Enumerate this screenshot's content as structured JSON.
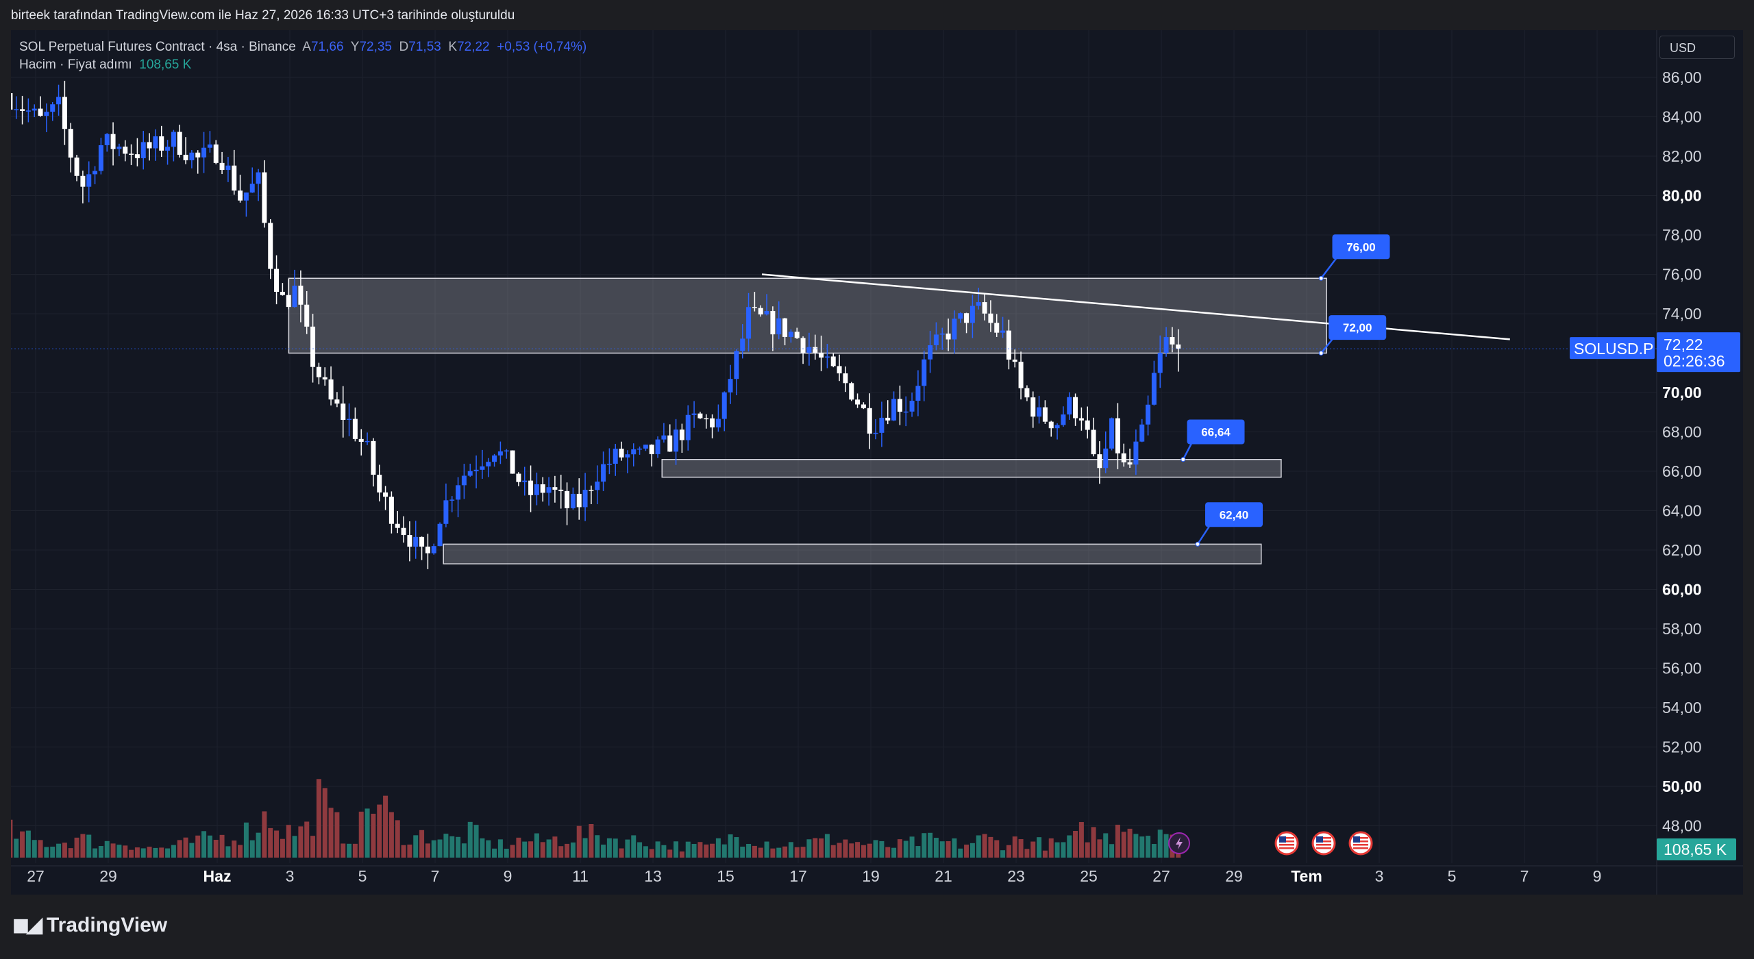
{
  "attribution": "birteek tarafından TradingView.com ile Haz 27, 2026 16:33 UTC+3 tarihinde oluşturuldu",
  "legend": {
    "symbol": "SOL Perpetual Futures Contract · 4sa · Binance",
    "open_key": "A",
    "open": "71,66",
    "high_key": "Y",
    "high": "72,35",
    "low_key": "D",
    "low": "71,53",
    "close_key": "K",
    "close": "72,22",
    "change": "+0,53 (+0,74%)",
    "volume_label": "Hacim · Fiyat adımı",
    "volume_value": "108,65 K"
  },
  "currency_button": "USD",
  "logo": "TradingView",
  "colors": {
    "background": "#131722",
    "up": "#2962ff",
    "down": "#ffffff",
    "vol_up": "#22786f",
    "vol_down": "#8f3a3f",
    "accent": "#2962ff",
    "volume_badge": "#26a69a"
  },
  "price_badge": {
    "symbol": "SOLUSD.P",
    "price": "72,22",
    "countdown": "02:26:36"
  },
  "volume_badge": "108,65 K",
  "event_icons": [
    "lightning-icon",
    "us-flag-icon",
    "us-flag-icon",
    "us-flag-icon"
  ],
  "chart_data": {
    "type": "candlestick",
    "ylim": [
      47,
      87
    ],
    "y_ticks": [
      {
        "v": 86,
        "label": "86,00",
        "bold": false
      },
      {
        "v": 84,
        "label": "84,00",
        "bold": false
      },
      {
        "v": 82,
        "label": "82,00",
        "bold": false
      },
      {
        "v": 80,
        "label": "80,00",
        "bold": true
      },
      {
        "v": 78,
        "label": "78,00",
        "bold": false
      },
      {
        "v": 76,
        "label": "76,00",
        "bold": false
      },
      {
        "v": 74,
        "label": "74,00",
        "bold": false
      },
      {
        "v": 70,
        "label": "70,00",
        "bold": true
      },
      {
        "v": 68,
        "label": "68,00",
        "bold": false
      },
      {
        "v": 66,
        "label": "66,00",
        "bold": false
      },
      {
        "v": 64,
        "label": "64,00",
        "bold": false
      },
      {
        "v": 62,
        "label": "62,00",
        "bold": false
      },
      {
        "v": 60,
        "label": "60,00",
        "bold": true
      },
      {
        "v": 58,
        "label": "58,00",
        "bold": false
      },
      {
        "v": 56,
        "label": "56,00",
        "bold": false
      },
      {
        "v": 54,
        "label": "54,00",
        "bold": false
      },
      {
        "v": 52,
        "label": "52,00",
        "bold": false
      },
      {
        "v": 50,
        "label": "50,00",
        "bold": true
      },
      {
        "v": 48,
        "label": "48,00",
        "bold": false
      }
    ],
    "x_ticks": [
      {
        "d": 0,
        "label": "27",
        "bold": false
      },
      {
        "d": 2,
        "label": "29",
        "bold": false
      },
      {
        "d": 5,
        "label": "Haz",
        "bold": true
      },
      {
        "d": 7,
        "label": "3",
        "bold": false
      },
      {
        "d": 9,
        "label": "5",
        "bold": false
      },
      {
        "d": 11,
        "label": "7",
        "bold": false
      },
      {
        "d": 13,
        "label": "9",
        "bold": false
      },
      {
        "d": 15,
        "label": "11",
        "bold": false
      },
      {
        "d": 17,
        "label": "13",
        "bold": false
      },
      {
        "d": 19,
        "label": "15",
        "bold": false
      },
      {
        "d": 21,
        "label": "17",
        "bold": false
      },
      {
        "d": 23,
        "label": "19",
        "bold": false
      },
      {
        "d": 25,
        "label": "21",
        "bold": false
      },
      {
        "d": 27,
        "label": "23",
        "bold": false
      },
      {
        "d": 29,
        "label": "25",
        "bold": false
      },
      {
        "d": 31,
        "label": "27",
        "bold": false
      },
      {
        "d": 33,
        "label": "29",
        "bold": false
      },
      {
        "d": 35,
        "label": "Tem",
        "bold": true
      },
      {
        "d": 37,
        "label": "3",
        "bold": false
      },
      {
        "d": 39,
        "label": "5",
        "bold": false
      },
      {
        "d": 41,
        "label": "7",
        "bold": false
      },
      {
        "d": 43,
        "label": "9",
        "bold": false
      }
    ],
    "price_path": [
      [
        -0.7,
        85.2
      ],
      [
        0.3,
        83.8
      ],
      [
        0.8,
        84.5
      ],
      [
        1.2,
        81.6
      ],
      [
        1.5,
        80.4
      ],
      [
        2,
        82.7
      ],
      [
        3,
        82.2
      ],
      [
        4,
        82.8
      ],
      [
        4.6,
        81.8
      ],
      [
        5.2,
        82.3
      ],
      [
        5.8,
        79.9
      ],
      [
        6.3,
        80.7
      ],
      [
        6.6,
        76.8
      ],
      [
        7.0,
        74.5
      ],
      [
        7.3,
        75.2
      ],
      [
        7.8,
        71.6
      ],
      [
        8.3,
        69.5
      ],
      [
        8.8,
        68.5
      ],
      [
        9.3,
        67
      ],
      [
        9.6,
        65
      ],
      [
        10,
        63.8
      ],
      [
        10.5,
        62.6
      ],
      [
        10.9,
        61.3
      ],
      [
        11.3,
        63.8
      ],
      [
        11.8,
        65.6
      ],
      [
        12.3,
        66.4
      ],
      [
        12.8,
        67.2
      ],
      [
        13.3,
        66.1
      ],
      [
        13.7,
        64.8
      ],
      [
        14.3,
        65.2
      ],
      [
        14.8,
        64.2
      ],
      [
        15.2,
        64.4
      ],
      [
        15.6,
        65.9
      ],
      [
        16.2,
        66.8
      ],
      [
        16.8,
        66.7
      ],
      [
        17.6,
        67.4
      ],
      [
        18.3,
        68.6
      ],
      [
        19,
        68.5
      ],
      [
        19.3,
        70.8
      ],
      [
        19.6,
        72.5
      ],
      [
        19.8,
        73.9
      ],
      [
        20.3,
        73.6
      ],
      [
        20.9,
        73.1
      ],
      [
        21.5,
        72.3
      ],
      [
        22,
        71.2
      ],
      [
        22.6,
        70.2
      ],
      [
        23.2,
        68.3
      ],
      [
        23.8,
        69.5
      ],
      [
        24.2,
        69.3
      ],
      [
        24.7,
        71.8
      ],
      [
        25.3,
        73.1
      ],
      [
        25.8,
        73.9
      ],
      [
        26.2,
        74.2
      ],
      [
        26.5,
        73.4
      ],
      [
        26.8,
        72.9
      ],
      [
        27.3,
        70.1
      ],
      [
        27.8,
        68.8
      ],
      [
        28.3,
        68.5
      ],
      [
        28.6,
        69.4
      ],
      [
        29.0,
        68.9
      ],
      [
        29.4,
        65.6
      ],
      [
        29.8,
        68.1
      ],
      [
        30.2,
        65.8
      ],
      [
        30.5,
        67.3
      ],
      [
        30.7,
        68.1
      ],
      [
        31.0,
        71.1
      ],
      [
        31.3,
        72.6
      ],
      [
        31.5,
        72.22
      ]
    ],
    "volume_profile": [
      [
        -0.7,
        16
      ],
      [
        0,
        10
      ],
      [
        0.6,
        9
      ],
      [
        1.2,
        12
      ],
      [
        1.8,
        9
      ],
      [
        2.4,
        10
      ],
      [
        3,
        6
      ],
      [
        3.6,
        6
      ],
      [
        4.2,
        9
      ],
      [
        4.8,
        12
      ],
      [
        5.4,
        13
      ],
      [
        6,
        18
      ],
      [
        6.4,
        27
      ],
      [
        6.9,
        16
      ],
      [
        7.5,
        18
      ],
      [
        7.8,
        37
      ],
      [
        8.2,
        22
      ],
      [
        8.6,
        12
      ],
      [
        9,
        20
      ],
      [
        9.2,
        37
      ],
      [
        9.6,
        30
      ],
      [
        10,
        17
      ],
      [
        10.4,
        12
      ],
      [
        10.8,
        15
      ],
      [
        11.2,
        12
      ],
      [
        11.6,
        11
      ],
      [
        12,
        16
      ],
      [
        12.4,
        9
      ],
      [
        12.9,
        8
      ],
      [
        13.4,
        11
      ],
      [
        13.9,
        10
      ],
      [
        14.5,
        12
      ],
      [
        15,
        15
      ],
      [
        15.6,
        13
      ],
      [
        16.2,
        11
      ],
      [
        16.8,
        10
      ],
      [
        17.4,
        8
      ],
      [
        18,
        7
      ],
      [
        18.6,
        7
      ],
      [
        19.2,
        13
      ],
      [
        19.6,
        14
      ],
      [
        20.1,
        10
      ],
      [
        20.6,
        8
      ],
      [
        21.1,
        9
      ],
      [
        21.6,
        10
      ],
      [
        22.1,
        12
      ],
      [
        22.6,
        9
      ],
      [
        23.1,
        8
      ],
      [
        23.6,
        7
      ],
      [
        24.1,
        9
      ],
      [
        24.6,
        11
      ],
      [
        25.1,
        9
      ],
      [
        25.6,
        8
      ],
      [
        26.1,
        12
      ],
      [
        26.6,
        9
      ],
      [
        27.1,
        11
      ],
      [
        27.6,
        9
      ],
      [
        28.1,
        8
      ],
      [
        28.6,
        11
      ],
      [
        28.9,
        18
      ],
      [
        29.4,
        12
      ],
      [
        29.7,
        15
      ],
      [
        29.9,
        30
      ],
      [
        30.3,
        17
      ],
      [
        30.7,
        15
      ],
      [
        31,
        20
      ],
      [
        31.5,
        5
      ]
    ],
    "volume_max": 100,
    "zones": [
      {
        "name": "zone-72-76",
        "from_d": 6.97,
        "to_d": 35.55,
        "low": 72.0,
        "high": 75.8
      },
      {
        "name": "zone-65-66",
        "from_d": 17.25,
        "to_d": 34.3,
        "low": 65.7,
        "high": 66.6
      },
      {
        "name": "zone-61-62",
        "from_d": 11.23,
        "to_d": 33.75,
        "low": 61.3,
        "high": 62.3
      }
    ],
    "trendline": {
      "from": [
        20.0,
        76.0
      ],
      "to": [
        40.6,
        72.7
      ]
    },
    "callouts": [
      {
        "label": "76,00",
        "anchor_d": 35.4,
        "anchor_v": 75.8,
        "box_d": 36.5,
        "box_v": 77.4
      },
      {
        "label": "72,00",
        "anchor_d": 35.4,
        "anchor_v": 72.0,
        "box_d": 36.4,
        "box_v": 73.3
      },
      {
        "label": "66,64",
        "anchor_d": 31.6,
        "anchor_v": 66.6,
        "box_d": 32.5,
        "box_v": 68.0
      },
      {
        "label": "62,40",
        "anchor_d": 32.0,
        "anchor_v": 62.3,
        "box_d": 33.0,
        "box_v": 63.8
      }
    ],
    "current_price": 72.22
  }
}
